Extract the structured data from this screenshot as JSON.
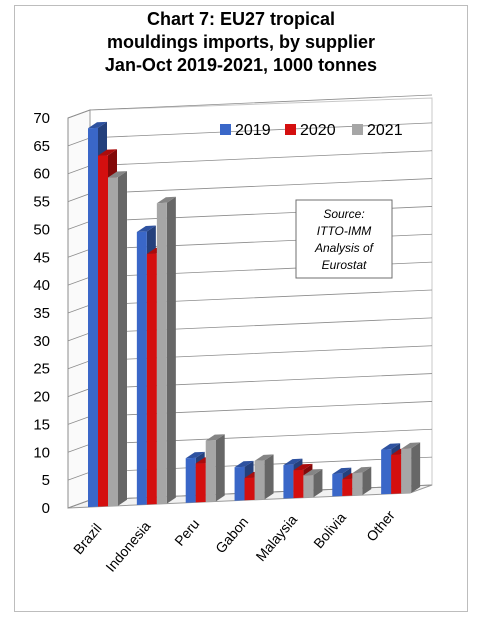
{
  "chart_data": {
    "type": "bar",
    "title_lines": [
      "Chart 7: EU27 tropical",
      "mouldings imports, by supplier",
      "Jan-Oct 2019-2021, 1000 tonnes"
    ],
    "categories": [
      "Brazil",
      "Indonesia",
      "Peru",
      "Gabon",
      "Malaysia",
      "Bolivia",
      "Other"
    ],
    "series": [
      {
        "name": "2019",
        "color": "#3a67c8",
        "values": [
          68,
          49,
          8,
          6,
          6,
          4,
          8
        ]
      },
      {
        "name": "2020",
        "color": "#d40f0f",
        "values": [
          63,
          45,
          7,
          4,
          5,
          3,
          7
        ]
      },
      {
        "name": "2021",
        "color": "#a6a6a6",
        "values": [
          59,
          54,
          11,
          7,
          4,
          4,
          8
        ]
      }
    ],
    "yticks": [
      "0",
      "5",
      "10",
      "15",
      "20",
      "25",
      "30",
      "35",
      "40",
      "45",
      "50",
      "55",
      "60",
      "65",
      "70"
    ],
    "ylim": [
      0,
      70
    ],
    "grid": true,
    "legend_position": "top-right",
    "annotation": [
      "Source:",
      "ITTO-IMM",
      "Analysis of",
      "Eurostat"
    ]
  }
}
